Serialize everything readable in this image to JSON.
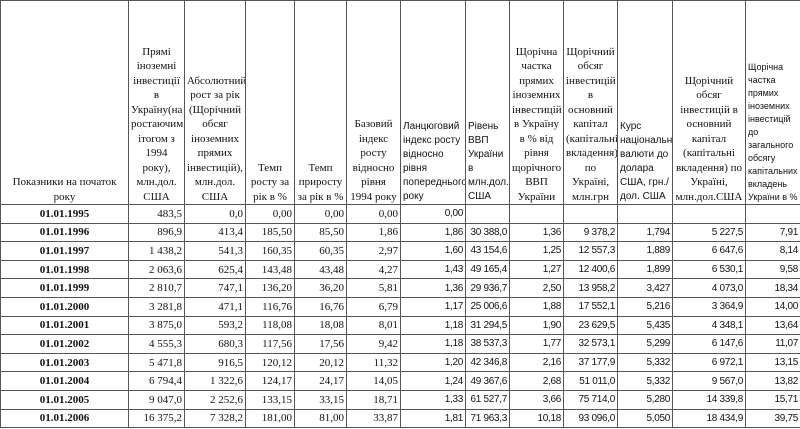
{
  "headers": [
    "Показники на початок року",
    "Прямі іноземні інвестиції в Україну(на ростаючим ітогом з 1994 року), млн.дол. США",
    "Абсолютний рост за рік (Щорічний обсяг іноземних прямих інвестицій), млн.дол. США",
    "Темп росту за рік в %",
    "Темп приросту за рік в %",
    "Базовий індекс росту відносно рівня 1994 року",
    "Ланцюговий індекс росту відносно рівня попереднього року",
    "Рівень ВВП України в млн.дол. США",
    "Щорічна частка прямих іноземних інвестицій в Україну в % від рівня щорічного ВВП України",
    "Щорічний обсяг інвестицій в основний капітал (капітальні вкладення) по Україні, млн.грн",
    "Курс національної валюти до долара США, грн./дол. США",
    "Щорічний обсяг інвестицій в основний капітал (капітальні вкладення) по Україні, млн.дол.США",
    "Щорічна частка прямих іноземних інвестицій до загального обсягу капітальних вкладень України в %"
  ],
  "rows": [
    [
      "01.01.1995",
      "483,5",
      "0,0",
      "0,00",
      "0,00",
      "0,00",
      "0,00",
      "",
      "",
      "",
      "",
      "",
      ""
    ],
    [
      "01.01.1996",
      "896,9",
      "413,4",
      "185,50",
      "85,50",
      "1,86",
      "1,86",
      "30 388,0",
      "1,36",
      "9 378,2",
      "1,794",
      "5 227,5",
      "7,91"
    ],
    [
      "01.01.1997",
      "1 438,2",
      "541,3",
      "160,35",
      "60,35",
      "2,97",
      "1,60",
      "43 154,6",
      "1,25",
      "12 557,3",
      "1,889",
      "6 647,6",
      "8,14"
    ],
    [
      "01.01.1998",
      "2 063,6",
      "625,4",
      "143,48",
      "43,48",
      "4,27",
      "1,43",
      "49 165,4",
      "1,27",
      "12 400,6",
      "1,899",
      "6 530,1",
      "9,58"
    ],
    [
      "01.01.1999",
      "2 810,7",
      "747,1",
      "136,20",
      "36,20",
      "5,81",
      "1,36",
      "29 936,7",
      "2,50",
      "13 958,2",
      "3,427",
      "4 073,0",
      "18,34"
    ],
    [
      "01.01.2000",
      "3 281,8",
      "471,1",
      "116,76",
      "16,76",
      "6,79",
      "1,17",
      "25 006,6",
      "1,88",
      "17 552,1",
      "5,216",
      "3 364,9",
      "14,00"
    ],
    [
      "01.01.2001",
      "3 875,0",
      "593,2",
      "118,08",
      "18,08",
      "8,01",
      "1,18",
      "31 294,5",
      "1,90",
      "23 629,5",
      "5,435",
      "4 348,1",
      "13,64"
    ],
    [
      "01.01.2002",
      "4 555,3",
      "680,3",
      "117,56",
      "17,56",
      "9,42",
      "1,18",
      "38 537,3",
      "1,77",
      "32 573,1",
      "5,299",
      "6 147,6",
      "11,07"
    ],
    [
      "01.01.2003",
      "5 471,8",
      "916,5",
      "120,12",
      "20,12",
      "11,32",
      "1,20",
      "42 346,8",
      "2,16",
      "37 177,9",
      "5,332",
      "6 972,1",
      "13,15"
    ],
    [
      "01.01.2004",
      "6 794,4",
      "1 322,6",
      "124,17",
      "24,17",
      "14,05",
      "1,24",
      "49 367,6",
      "2,68",
      "51 011,0",
      "5,332",
      "9 567,0",
      "13,82"
    ],
    [
      "01.01.2005",
      "9 047,0",
      "2 252,6",
      "133,15",
      "33,15",
      "18,71",
      "1,33",
      "61 527,7",
      "3,66",
      "75 714,0",
      "5,280",
      "14 339,8",
      "15,71"
    ],
    [
      "01.01.2006",
      "16 375,2",
      "7 328,2",
      "181,00",
      "81,00",
      "33,87",
      "1,81",
      "71 963,3",
      "10,18",
      "93 096,0",
      "5,050",
      "18 434,9",
      "39,75"
    ]
  ]
}
